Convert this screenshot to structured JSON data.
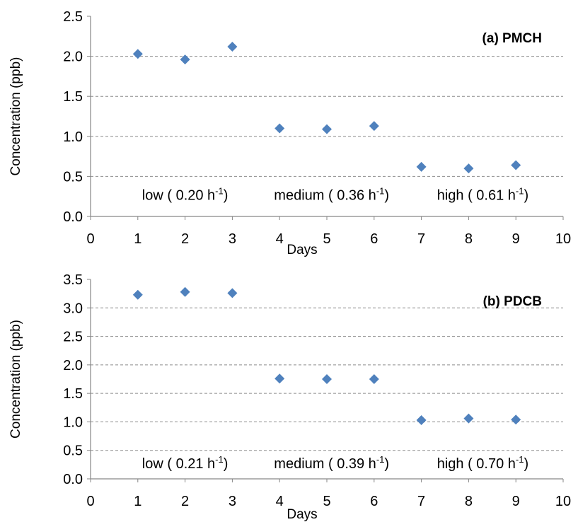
{
  "chart_data": [
    {
      "type": "scatter",
      "panel_label": "(a)  PMCH",
      "xlabel": "Days",
      "ylabel": "Concentration (ppb)",
      "xlim": [
        0,
        10
      ],
      "ylim": [
        0,
        2.5
      ],
      "x_ticks": [
        "0",
        "1",
        "2",
        "3",
        "4",
        "5",
        "6",
        "7",
        "8",
        "9",
        "10"
      ],
      "y_ticks": [
        "0.0",
        "0.5",
        "1.0",
        "1.5",
        "2.0",
        "2.5"
      ],
      "grid": "horizontal dashed",
      "marker": "diamond",
      "color": "#4F81BD",
      "points": [
        {
          "x": 1,
          "y": 2.03
        },
        {
          "x": 2,
          "y": 1.96
        },
        {
          "x": 3,
          "y": 2.12
        },
        {
          "x": 4,
          "y": 1.1
        },
        {
          "x": 5,
          "y": 1.09
        },
        {
          "x": 6,
          "y": 1.13
        },
        {
          "x": 7,
          "y": 0.62
        },
        {
          "x": 8,
          "y": 0.6
        },
        {
          "x": 9,
          "y": 0.64
        }
      ],
      "annotations": [
        {
          "x": 2.0,
          "y": 0.27,
          "text": "low ( 0.20 h",
          "sup": "-1",
          "close": ")"
        },
        {
          "x": 5.1,
          "y": 0.27,
          "text": "medium  ( 0.36 h",
          "sup": "-1",
          "close": ")"
        },
        {
          "x": 8.3,
          "y": 0.27,
          "text": "high  ( 0.61 h",
          "sup": "-1",
          "close": ")"
        }
      ]
    },
    {
      "type": "scatter",
      "panel_label": "(b)  PDCB",
      "xlabel": "Days",
      "ylabel": "Concentration (ppb)",
      "xlim": [
        0,
        10
      ],
      "ylim": [
        0,
        3.5
      ],
      "x_ticks": [
        "0",
        "1",
        "2",
        "3",
        "4",
        "5",
        "6",
        "7",
        "8",
        "9",
        "10"
      ],
      "y_ticks": [
        "0.0",
        "0.5",
        "1.0",
        "1.5",
        "2.0",
        "2.5",
        "3.0",
        "3.5"
      ],
      "grid": "horizontal dashed",
      "marker": "diamond",
      "color": "#4F81BD",
      "points": [
        {
          "x": 1,
          "y": 3.23
        },
        {
          "x": 2,
          "y": 3.28
        },
        {
          "x": 3,
          "y": 3.26
        },
        {
          "x": 4,
          "y": 1.76
        },
        {
          "x": 5,
          "y": 1.75
        },
        {
          "x": 6,
          "y": 1.75
        },
        {
          "x": 7,
          "y": 1.03
        },
        {
          "x": 8,
          "y": 1.06
        },
        {
          "x": 9,
          "y": 1.04
        }
      ],
      "annotations": [
        {
          "x": 2.0,
          "y": 0.27,
          "text": "low ( 0.21 h",
          "sup": "-1",
          "close": ")"
        },
        {
          "x": 5.1,
          "y": 0.27,
          "text": "medium  ( 0.39 h",
          "sup": "-1",
          "close": ")"
        },
        {
          "x": 8.3,
          "y": 0.27,
          "text": "high  ( 0.70 h",
          "sup": "-1",
          "close": ")"
        }
      ]
    }
  ]
}
